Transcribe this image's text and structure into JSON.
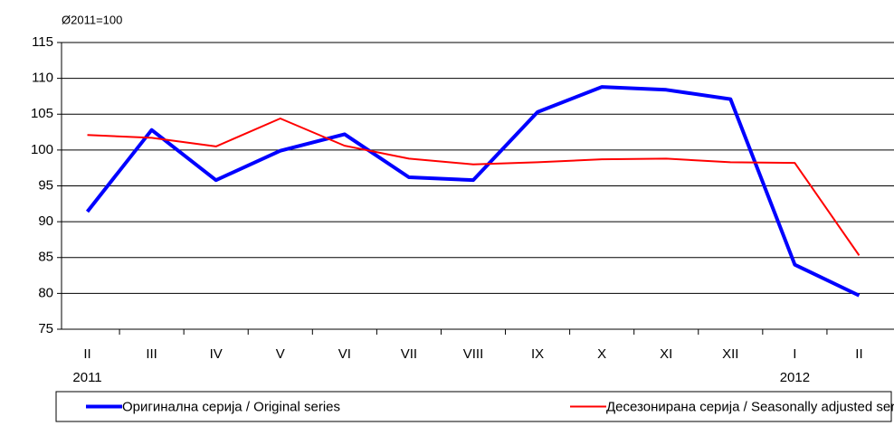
{
  "chart_data": {
    "type": "line",
    "unit_label": "Ø2011=100",
    "categories": [
      "II",
      "III",
      "IV",
      "V",
      "VI",
      "VII",
      "VIII",
      "IX",
      "X",
      "XI",
      "XII",
      "I",
      "II"
    ],
    "year_labels": [
      "2011",
      null,
      null,
      null,
      null,
      null,
      null,
      null,
      null,
      null,
      null,
      "2012",
      null
    ],
    "series": [
      {
        "name": "Оригинална серија / Original series",
        "color": "#0000ff",
        "width": 4,
        "values": [
          91.4,
          102.8,
          95.8,
          99.9,
          102.2,
          96.2,
          95.8,
          105.3,
          108.8,
          108.4,
          107.1,
          84.0,
          79.7
        ]
      },
      {
        "name": "Десезонирана серија / Seasonally adjusted series",
        "color": "#ff0000",
        "width": 2,
        "values": [
          102.1,
          101.7,
          100.5,
          104.4,
          100.6,
          98.8,
          98.0,
          98.3,
          98.7,
          98.8,
          98.3,
          98.2,
          85.3
        ]
      }
    ],
    "ylim": [
      75,
      115
    ],
    "yticks": [
      75,
      80,
      85,
      90,
      95,
      100,
      105,
      110,
      115
    ],
    "grid": true,
    "legend": "bottom"
  }
}
